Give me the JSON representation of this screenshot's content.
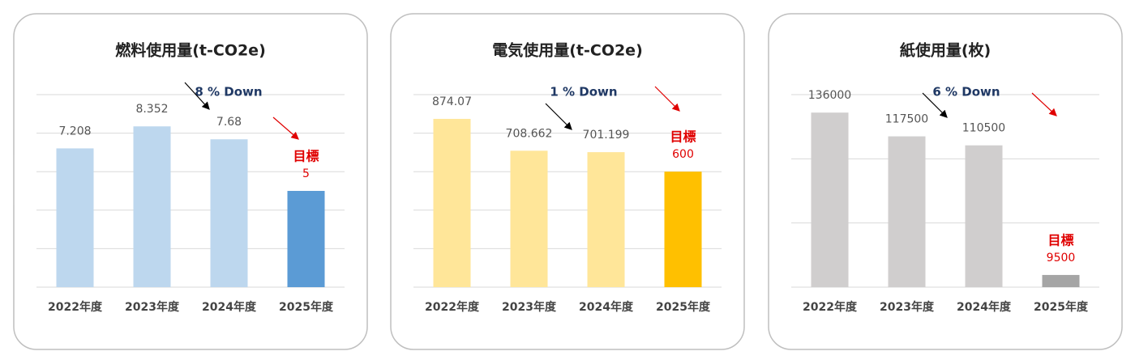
{
  "chart_data": [
    {
      "type": "bar",
      "title": "燃料使用量(t-CO2e)",
      "categories": [
        "2022年度",
        "2023年度",
        "2024年度",
        "2025年度"
      ],
      "values": [
        7.208,
        8.352,
        7.68,
        5
      ],
      "colors": [
        "#bdd7ee",
        "#bdd7ee",
        "#bdd7ee",
        "#5b9bd5"
      ],
      "ylim": [
        0,
        10
      ],
      "yticks": [
        0,
        2,
        4,
        6,
        8,
        10
      ],
      "grid": true,
      "annotation": "8 % Down",
      "target_label": "目標"
    },
    {
      "type": "bar",
      "title": "電気使用量(t-CO2e)",
      "categories": [
        "2022年度",
        "2023年度",
        "2024年度",
        "2025年度"
      ],
      "values": [
        874.07,
        708.662,
        701.199,
        600
      ],
      "colors": [
        "#ffe699",
        "#ffe699",
        "#ffe699",
        "#ffc000"
      ],
      "ylim": [
        0,
        1000
      ],
      "yticks": [
        0,
        200,
        400,
        600,
        800,
        1000
      ],
      "grid": true,
      "annotation": "1 % Down",
      "target_label": "目標"
    },
    {
      "type": "bar",
      "title": "紙使用量(枚)",
      "categories": [
        "2022年度",
        "2023年度",
        "2024年度",
        "2025年度"
      ],
      "values": [
        136000,
        117500,
        110500,
        9500
      ],
      "colors": [
        "#d0cece",
        "#d0cece",
        "#d0cece",
        "#a5a5a5"
      ],
      "ylim": [
        0,
        150000
      ],
      "yticks": [
        0,
        50000,
        100000,
        150000
      ],
      "grid": true,
      "annotation": "6 % Down",
      "target_label": "目標"
    }
  ]
}
